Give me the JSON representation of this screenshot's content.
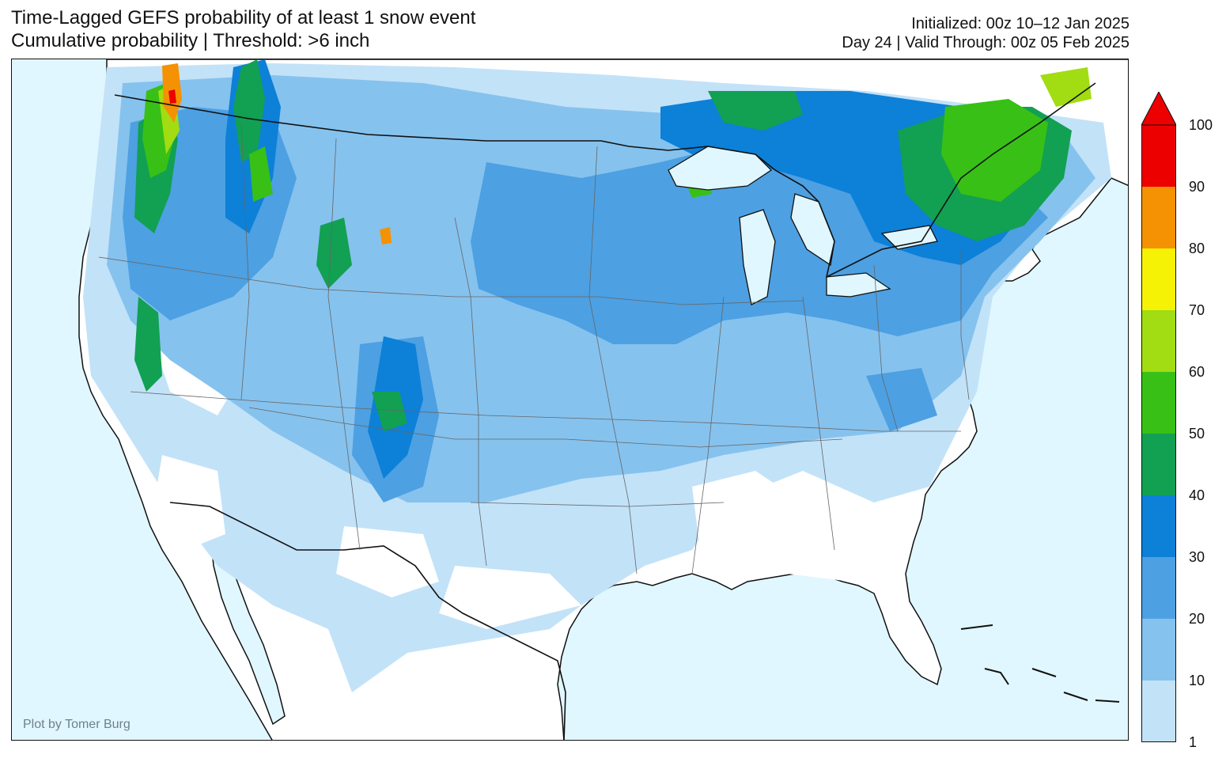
{
  "header": {
    "title_line1": "Time-Lagged GEFS probability of at least 1 snow event",
    "title_line2": "Cumulative probability | Threshold: >6 inch",
    "init_line": "Initialized: 00z 10–12 Jan 2025",
    "valid_line": "Day 24 | Valid Through: 00z 05 Feb 2025"
  },
  "credit": "Plot by Tomer Burg",
  "colorbar": {
    "ticks": [
      "1",
      "10",
      "20",
      "30",
      "40",
      "50",
      "60",
      "70",
      "80",
      "90",
      "100"
    ],
    "colors": [
      "#c2e2f8",
      "#86c2ee",
      "#4da0e2",
      "#0d80d8",
      "#12a052",
      "#38c016",
      "#a2dc12",
      "#f6f206",
      "#f49204",
      "#ec0000"
    ],
    "extend_color": "#ec0000"
  },
  "map_colors": {
    "ocean": "#e0f7ff",
    "land": "#ffffff",
    "borders": "#111111",
    "states": "#666666"
  }
}
